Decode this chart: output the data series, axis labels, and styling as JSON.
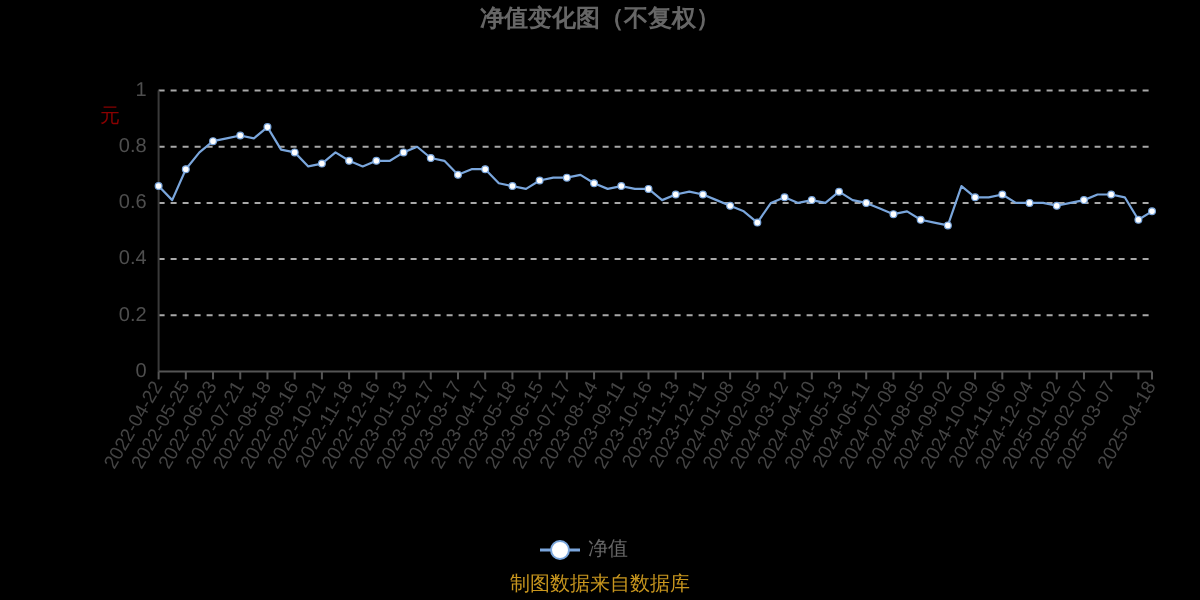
{
  "chart_data": {
    "type": "line",
    "title": "净值变化图（不复权）",
    "ylabel": "元",
    "categories": [
      "2022-04-22",
      null,
      "2022-05-25",
      null,
      "2022-06-23",
      null,
      "2022-07-21",
      null,
      "2022-08-18",
      null,
      "2022-09-16",
      null,
      "2022-10-21",
      null,
      "2022-11-18",
      null,
      "2022-12-16",
      null,
      "2023-01-13",
      null,
      "2023-02-17",
      null,
      "2023-03-17",
      null,
      "2023-04-17",
      null,
      "2023-05-18",
      null,
      "2023-06-15",
      null,
      "2023-07-17",
      null,
      "2023-08-14",
      null,
      "2023-09-11",
      null,
      "2023-10-16",
      null,
      "2023-11-13",
      null,
      "2023-12-11",
      null,
      "2024-01-08",
      null,
      "2024-02-05",
      null,
      "2024-03-12",
      null,
      "2024-04-10",
      null,
      "2024-05-13",
      null,
      "2024-06-11",
      null,
      "2024-07-08",
      null,
      "2024-08-05",
      null,
      "2024-09-02",
      null,
      "2024-10-09",
      null,
      "2024-11-06",
      null,
      "2024-12-04",
      null,
      "2025-01-02",
      null,
      "2025-02-07",
      null,
      "2025-03-07",
      null,
      null,
      "2025-04-18"
    ],
    "series": [
      {
        "name": "净值",
        "color": "#7aa6dc",
        "values": [
          0.66,
          0.61,
          0.72,
          0.78,
          0.82,
          0.83,
          0.84,
          0.83,
          0.87,
          0.79,
          0.78,
          0.73,
          0.74,
          0.78,
          0.75,
          0.73,
          0.75,
          0.75,
          0.78,
          0.8,
          0.76,
          0.75,
          0.7,
          0.72,
          0.72,
          0.67,
          0.66,
          0.65,
          0.68,
          0.69,
          0.69,
          0.7,
          0.67,
          0.65,
          0.66,
          0.65,
          0.65,
          0.61,
          0.63,
          0.64,
          0.63,
          0.61,
          0.59,
          0.57,
          0.53,
          0.6,
          0.62,
          0.6,
          0.61,
          0.6,
          0.64,
          0.61,
          0.6,
          0.58,
          0.56,
          0.57,
          0.54,
          0.53,
          0.52,
          0.66,
          0.62,
          0.62,
          0.63,
          0.6,
          0.6,
          0.6,
          0.59,
          0.6,
          0.61,
          0.63,
          0.63,
          0.62,
          0.54,
          0.57
        ]
      }
    ],
    "ylim": [
      0,
      1
    ],
    "yticks": [
      0,
      0.2,
      0.4,
      0.6,
      0.8,
      1
    ],
    "grid": "y",
    "legend": "bottom",
    "marker": "circle",
    "annotations": [
      "制图数据来自数据库"
    ]
  }
}
